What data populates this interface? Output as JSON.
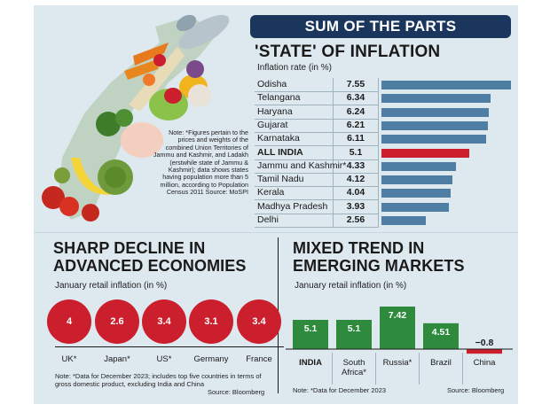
{
  "header": {
    "banner": "SUM OF THE PARTS"
  },
  "state_section": {
    "title": "'STATE' OF INFLATION",
    "subtitle": "Inflation rate (in %)"
  },
  "top_note": "Note: *Figures pertain to the prices and weights of the combined Union Territories of Jammu and Kashmir, and Ladakh (erstwhile state of Jammu & Kashmir); data shows states having population more than 5 million, according to Population Census 2011 Source: MoSPI",
  "advanced": {
    "title_line1": "SHARP DECLINE IN",
    "title_line2": "ADVANCED ECONOMIES",
    "subtitle": "January retail inflation (in %)",
    "note": "Note: *Data for December 2023; includes top five countries in terms of gross domestic product, excluding India and China",
    "source": "Source: Bloomberg"
  },
  "emerging": {
    "title_line1": "MIXED TREND IN",
    "title_line2": "EMERGING MARKETS",
    "subtitle": "January retail inflation (in %)",
    "note": "Note: *Data for December 2023",
    "source": "Source: Bloomberg"
  },
  "colors": {
    "panel_bg": "#dde9ef",
    "header_bg": "#1b365d",
    "state_bar": "#4e7ea3",
    "highlight_red": "#cc1f2d",
    "green": "#2e8b3e"
  },
  "chart_data": [
    {
      "type": "bar",
      "orientation": "horizontal",
      "title": "'STATE' OF INFLATION",
      "ylabel": "Inflation rate (in %)",
      "categories": [
        "Odisha",
        "Telangana",
        "Haryana",
        "Gujarat",
        "Karnataka",
        "ALL INDIA",
        "Jammu and Kashmir*",
        "Tamil Nadu",
        "Kerala",
        "Madhya Pradesh",
        "Delhi"
      ],
      "values": [
        7.55,
        6.34,
        6.24,
        6.21,
        6.11,
        5.1,
        4.33,
        4.12,
        4.04,
        3.93,
        2.56
      ],
      "value_labels": [
        "7.55",
        "6.34",
        "6.24",
        "6.21",
        "6.11",
        "5.1",
        "4.33",
        "4.12",
        "4.04",
        "3.93",
        "2.56"
      ],
      "highlight": "ALL INDIA"
    },
    {
      "type": "bubble",
      "title": "SHARP DECLINE IN ADVANCED ECONOMIES",
      "ylabel": "January retail inflation (in %)",
      "categories": [
        "UK*",
        "Japan*",
        "US*",
        "Germany",
        "France"
      ],
      "values": [
        4,
        2.6,
        3.4,
        3.1,
        3.4
      ],
      "value_labels": [
        "4",
        "2.6",
        "3.4",
        "3.1",
        "3.4"
      ]
    },
    {
      "type": "bar",
      "title": "MIXED TREND IN EMERGING MARKETS",
      "ylabel": "January retail inflation (in %)",
      "categories": [
        "INDIA",
        "South Africa*",
        "Russia*",
        "Brazil",
        "China"
      ],
      "values": [
        5.1,
        5.1,
        7.42,
        4.51,
        -0.8
      ],
      "value_labels": [
        "5.1",
        "5.1",
        "7.42",
        "4.51",
        "−0.8"
      ]
    }
  ]
}
